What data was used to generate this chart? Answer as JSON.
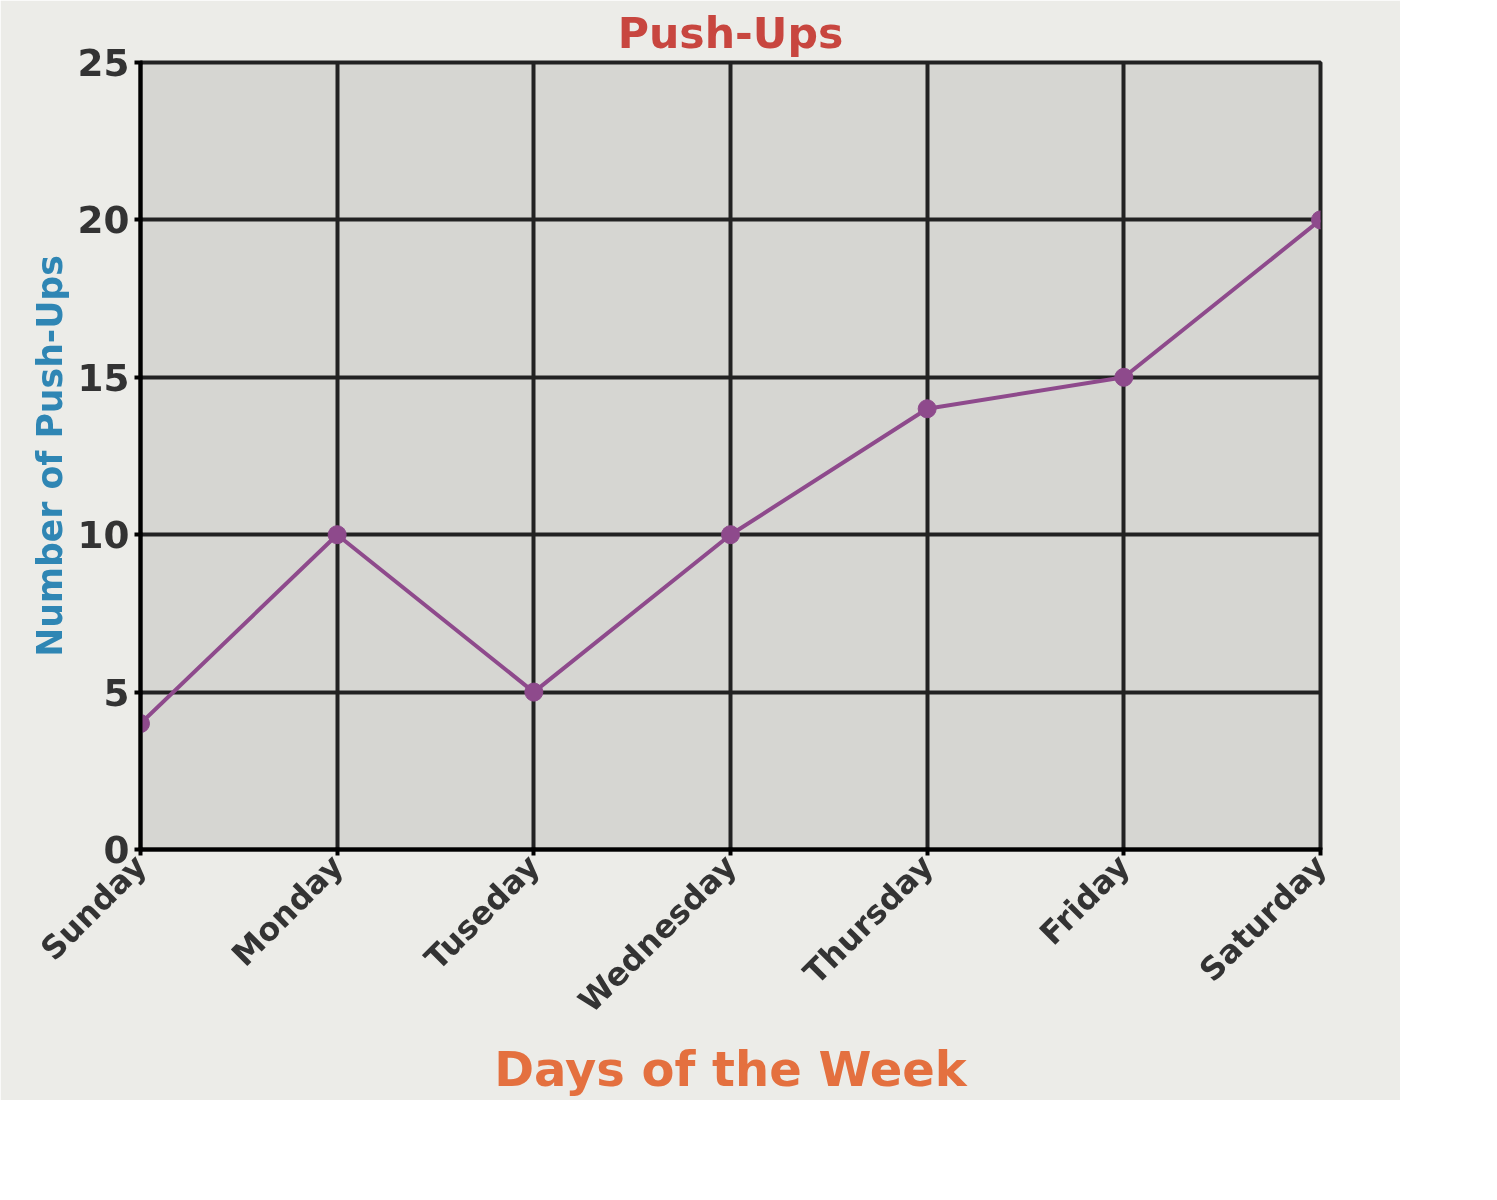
{
  "chart_data": {
    "type": "line",
    "title": "Push-Ups",
    "xlabel": "Days of the Week",
    "ylabel": "Number of Push-Ups",
    "categories": [
      "Sunday",
      "Monday",
      "Tuseday",
      "Wednesday",
      "Thursday",
      "Friday",
      "Saturday"
    ],
    "series": [
      {
        "color": "#8e4a8c",
        "values": [
          4,
          10,
          5,
          10,
          14,
          15,
          20
        ]
      }
    ],
    "ylim": [
      0,
      25
    ],
    "yticks": [
      0,
      5,
      10,
      15,
      20,
      25
    ],
    "grid": true,
    "marker": "circle"
  }
}
